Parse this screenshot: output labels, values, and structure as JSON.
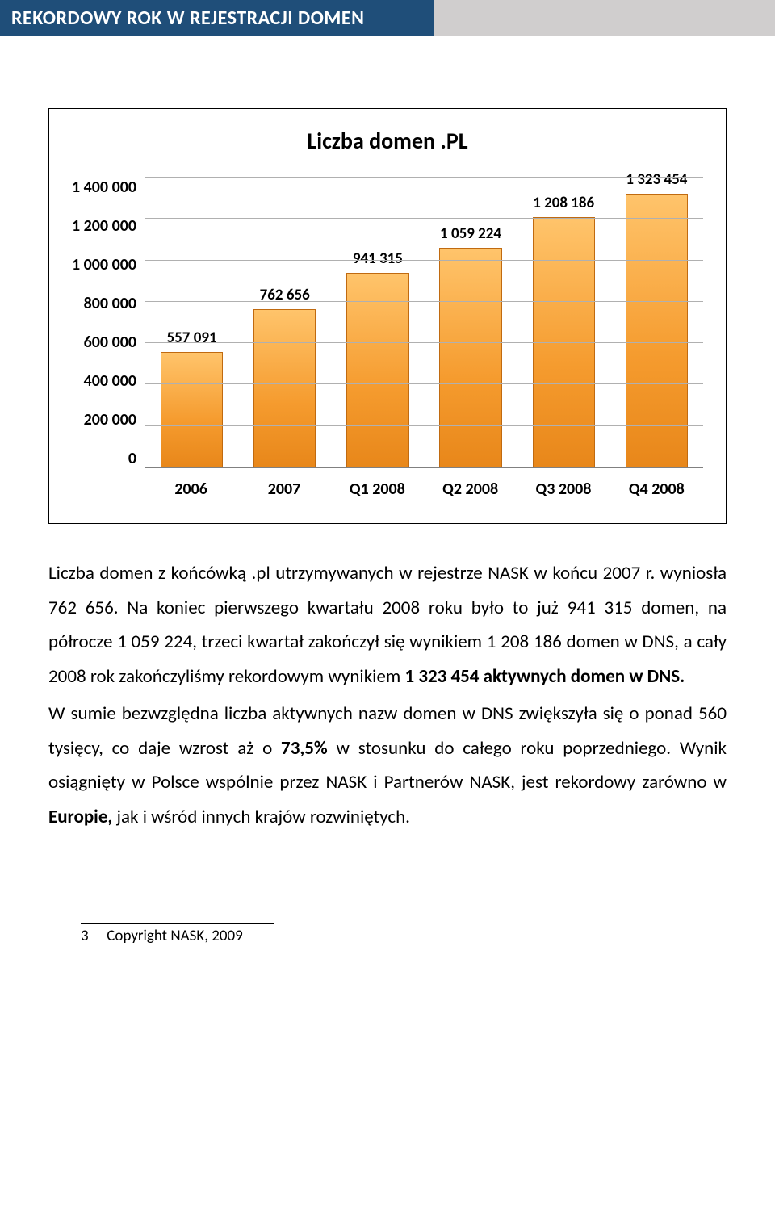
{
  "header": {
    "title": "REKORDOWY ROK W REJESTRACJI DOMEN"
  },
  "chart": {
    "type": "bar",
    "title": "Liczba  domen .PL",
    "y_max": 1400000,
    "y_step": 200000,
    "y_ticks": [
      "1 400 000",
      "1 200 000",
      "1 000 000",
      "800 000",
      "600 000",
      "400 000",
      "200 000",
      "0"
    ],
    "categories": [
      "2006",
      "2007",
      "Q1 2008",
      "Q2 2008",
      "Q3 2008",
      "Q4 2008"
    ],
    "values": [
      557091,
      762656,
      941315,
      1059224,
      1208186,
      1323454
    ],
    "value_labels": [
      "557 091",
      "762 656",
      "941 315",
      "1 059 224",
      "1 208 186",
      "1 323 454"
    ],
    "bar_fill_top": "#ffc46b",
    "bar_fill_mid": "#f59b2e",
    "bar_fill_bottom": "#e8871a",
    "bar_border": "#c06a10",
    "grid_color": "#b0b0b0",
    "axis_color": "#808080",
    "title_fontsize": 28,
    "tick_fontsize": 20
  },
  "text": {
    "p1a": "Liczba domen z końcówką .pl utrzymywanych w rejestrze NASK w końcu 2007 r. wyniosła 762 656. Na koniec pierwszego kwartału 2008 roku było to już  941 315 domen, na półrocze 1 059 224, trzeci kwartał zakończył się wynikiem 1 208 186 domen w DNS, a cały 2008 rok zakończyliśmy rekordowym wynikiem ",
    "p1b": "1 323 454 aktywnych domen w DNS.",
    "p2a": "W sumie bezwzględna liczba aktywnych nazw domen w DNS zwiększyła się o ponad 560 tysięcy, co daje wzrost aż o ",
    "p2b": "73,5%",
    "p2c": " w stosunku do całego roku poprzedniego. Wynik osiągnięty w Polsce wspólnie przez NASK i Partnerów NASK, jest rekordowy zarówno w ",
    "p2d": "Europie,",
    "p2e": " jak i wśród innych krajów rozwiniętych."
  },
  "footer": {
    "page": "3",
    "copyright": "Copyright NASK, 2009"
  }
}
